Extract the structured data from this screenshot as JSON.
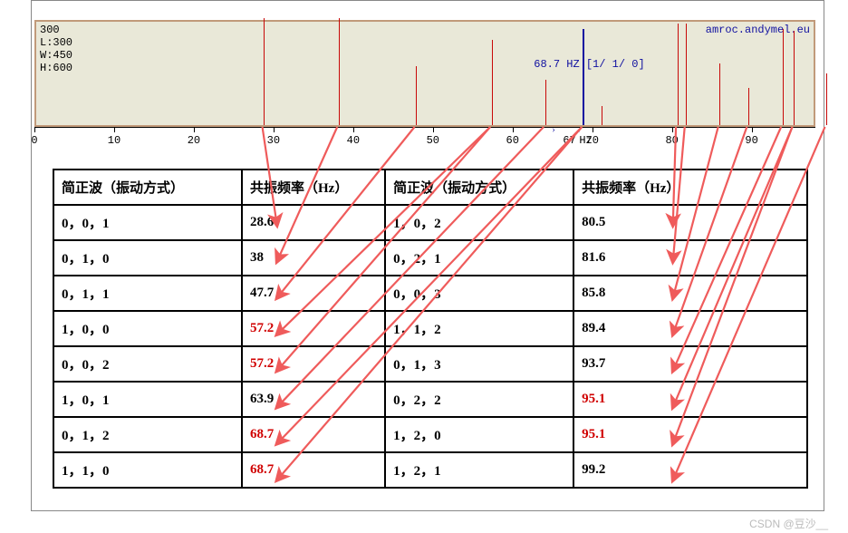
{
  "chart": {
    "meta_top": "300",
    "meta_L": "L:300",
    "meta_W": "W:450",
    "meta_H": "H:600",
    "source": "amroc.andymel.eu",
    "peak_label": "68.7 HZ [1/ 1/ 0]",
    "xlabel_value": "67",
    "xlabel_unit": "Hz",
    "xlim": [
      0,
      98
    ],
    "axis_ticks": [
      0,
      10,
      20,
      30,
      40,
      50,
      60,
      70,
      80,
      90
    ],
    "background_color": "#e9e8d8",
    "border_color": "#c19a7a",
    "bar_color": "#c80808",
    "highlight_color": "#1010a0",
    "bars": [
      {
        "x": 28.6,
        "h": 1.0,
        "c": "#c80808"
      },
      {
        "x": 38.0,
        "h": 1.0,
        "c": "#c80808"
      },
      {
        "x": 47.7,
        "h": 0.55,
        "c": "#c80808"
      },
      {
        "x": 57.2,
        "h": 0.8,
        "c": "#c80808"
      },
      {
        "x": 63.9,
        "h": 0.42,
        "c": "#c80808"
      },
      {
        "x": 68.7,
        "h": 0.9,
        "c": "#1010a0",
        "w": 2
      },
      {
        "x": 71.0,
        "h": 0.18,
        "c": "#c80808"
      },
      {
        "x": 80.5,
        "h": 0.95,
        "c": "#c80808"
      },
      {
        "x": 81.6,
        "h": 0.95,
        "c": "#c80808"
      },
      {
        "x": 85.8,
        "h": 0.58,
        "c": "#c80808"
      },
      {
        "x": 89.4,
        "h": 0.35,
        "c": "#c80808"
      },
      {
        "x": 93.7,
        "h": 0.9,
        "c": "#c80808"
      },
      {
        "x": 95.1,
        "h": 0.88,
        "c": "#c80808"
      },
      {
        "x": 99.2,
        "h": 0.48,
        "c": "#c80808"
      }
    ]
  },
  "table": {
    "col_widths": [
      "25%",
      "19%",
      "25%",
      "31%"
    ],
    "headers": [
      "简正波（振动方式）",
      "共振频率（Hz）",
      "简正波（振动方式）",
      "共振频率（Hz）"
    ],
    "rows": [
      [
        {
          "t": "0，0，1"
        },
        {
          "t": "28.6"
        },
        {
          "t": "1，0，2"
        },
        {
          "t": "80.5"
        }
      ],
      [
        {
          "t": "0，1，0"
        },
        {
          "t": "38"
        },
        {
          "t": "0，2，1"
        },
        {
          "t": "81.6"
        }
      ],
      [
        {
          "t": "0，1，1"
        },
        {
          "t": "47.7"
        },
        {
          "t": "0，0，3"
        },
        {
          "t": "85.8"
        }
      ],
      [
        {
          "t": "1，0，0"
        },
        {
          "t": "57.2",
          "red": true
        },
        {
          "t": "1，1，2"
        },
        {
          "t": "89.4"
        }
      ],
      [
        {
          "t": "0，0，2"
        },
        {
          "t": "57.2",
          "red": true
        },
        {
          "t": "0，1，3"
        },
        {
          "t": "93.7"
        }
      ],
      [
        {
          "t": "1，0，1"
        },
        {
          "t": "63.9"
        },
        {
          "t": "0，2，2"
        },
        {
          "t": "95.1",
          "red": true
        }
      ],
      [
        {
          "t": "0，1，2"
        },
        {
          "t": "68.7",
          "red": true
        },
        {
          "t": "1，2，0"
        },
        {
          "t": "95.1",
          "red": true
        }
      ],
      [
        {
          "t": "1，1，0"
        },
        {
          "t": "68.7",
          "red": true
        },
        {
          "t": "1，2，1"
        },
        {
          "t": "99.2"
        }
      ]
    ]
  },
  "arrows": {
    "color": "#ef5b5b",
    "stroke": 2.2,
    "chart_y": 140,
    "defs": [
      {
        "from_bar": 28.6,
        "to_row": 0,
        "to_col": 1
      },
      {
        "from_bar": 38.0,
        "to_row": 1,
        "to_col": 1
      },
      {
        "from_bar": 47.7,
        "to_row": 2,
        "to_col": 1
      },
      {
        "from_bar": 57.2,
        "to_row": 3,
        "to_col": 1
      },
      {
        "from_bar": 57.2,
        "to_row": 4,
        "to_col": 1
      },
      {
        "from_bar": 63.9,
        "to_row": 5,
        "to_col": 1
      },
      {
        "from_bar": 68.7,
        "to_row": 6,
        "to_col": 1
      },
      {
        "from_bar": 68.7,
        "to_row": 7,
        "to_col": 1
      },
      {
        "from_bar": 80.5,
        "to_row": 0,
        "to_col": 3
      },
      {
        "from_bar": 81.6,
        "to_row": 1,
        "to_col": 3
      },
      {
        "from_bar": 85.8,
        "to_row": 2,
        "to_col": 3
      },
      {
        "from_bar": 89.4,
        "to_row": 3,
        "to_col": 3
      },
      {
        "from_bar": 93.7,
        "to_row": 4,
        "to_col": 3
      },
      {
        "from_bar": 95.1,
        "to_row": 5,
        "to_col": 3
      },
      {
        "from_bar": 95.1,
        "to_row": 6,
        "to_col": 3
      },
      {
        "from_bar": 99.2,
        "to_row": 7,
        "to_col": 3
      }
    ]
  },
  "watermark": "CSDN @豆沙__"
}
